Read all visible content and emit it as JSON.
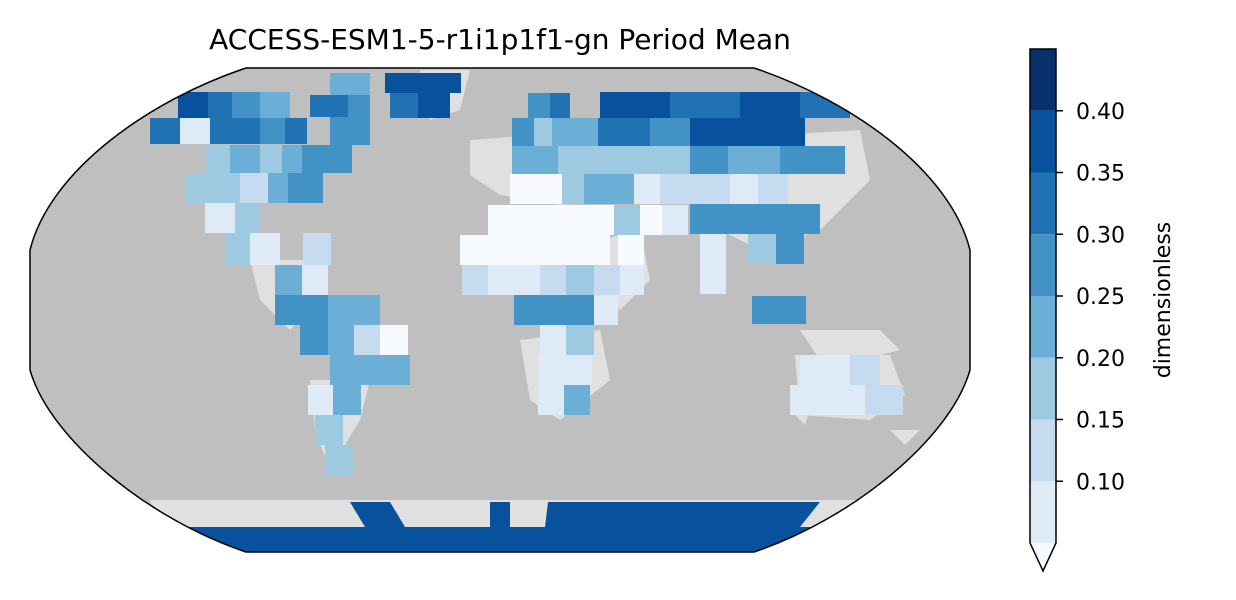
{
  "title": "ACCESS-ESM1-5-r1i1p1f1-gn Period Mean",
  "projection": "Robinson",
  "colorbar": {
    "label": "dimensionless",
    "colormap": "Blues",
    "extend": "min",
    "boundaries": [
      0.05,
      0.1,
      0.15,
      0.2,
      0.25,
      0.3,
      0.35,
      0.4,
      0.45
    ],
    "ticks": [
      "0.10",
      "0.15",
      "0.20",
      "0.25",
      "0.30",
      "0.35",
      "0.40"
    ],
    "colors": [
      "#f7fbff",
      "#deebf7",
      "#c6dbef",
      "#9ecae1",
      "#6baed6",
      "#4292c6",
      "#2171b5",
      "#08519c",
      "#08306b"
    ]
  },
  "colors": {
    "ocean_mask": "#bfbfbf",
    "land_underlay": "#e0e0e0",
    "outline": "#000000"
  },
  "chart_data": {
    "type": "heatmap",
    "title": "ACCESS-ESM1-5-r1i1p1f1-gn Period Mean",
    "grid": "coarse lat-lon cells over land",
    "value_range": [
      0.05,
      0.42
    ],
    "cells": [
      {
        "lon": -125,
        "lat": 70,
        "value": 0.36
      },
      {
        "lon": -100,
        "lat": 70,
        "value": 0.33
      },
      {
        "lon": -75,
        "lat": 70,
        "value": 0.31
      },
      {
        "lon": -110,
        "lat": 55,
        "value": 0.31
      },
      {
        "lon": -90,
        "lat": 55,
        "value": 0.27
      },
      {
        "lon": -70,
        "lat": 55,
        "value": 0.32
      },
      {
        "lon": -120,
        "lat": 42,
        "value": 0.21
      },
      {
        "lon": -100,
        "lat": 42,
        "value": 0.24
      },
      {
        "lon": -80,
        "lat": 42,
        "value": 0.28
      },
      {
        "lon": -105,
        "lat": 30,
        "value": 0.15
      },
      {
        "lon": -90,
        "lat": 15,
        "value": 0.25
      },
      {
        "lon": -60,
        "lat": 0,
        "value": 0.27
      },
      {
        "lon": -45,
        "lat": -5,
        "value": 0.05
      },
      {
        "lon": -60,
        "lat": -20,
        "value": 0.26
      },
      {
        "lon": -65,
        "lat": -40,
        "value": 0.2
      },
      {
        "lon": -35,
        "lat": 75,
        "value": 0.37
      },
      {
        "lon": 15,
        "lat": 60,
        "value": 0.26
      },
      {
        "lon": 40,
        "lat": 60,
        "value": 0.33
      },
      {
        "lon": 90,
        "lat": 65,
        "value": 0.36
      },
      {
        "lon": 130,
        "lat": 65,
        "value": 0.32
      },
      {
        "lon": 60,
        "lat": 45,
        "value": 0.23
      },
      {
        "lon": 110,
        "lat": 45,
        "value": 0.25
      },
      {
        "lon": 10,
        "lat": 25,
        "value": 0.06
      },
      {
        "lon": 100,
        "lat": 30,
        "value": 0.29
      },
      {
        "lon": 0,
        "lat": 12,
        "value": 0.13
      },
      {
        "lon": 20,
        "lat": 0,
        "value": 0.27
      },
      {
        "lon": 25,
        "lat": -20,
        "value": 0.13
      },
      {
        "lon": 130,
        "lat": -25,
        "value": 0.13
      },
      {
        "lon": 0,
        "lat": -80,
        "value": 0.37
      }
    ]
  }
}
